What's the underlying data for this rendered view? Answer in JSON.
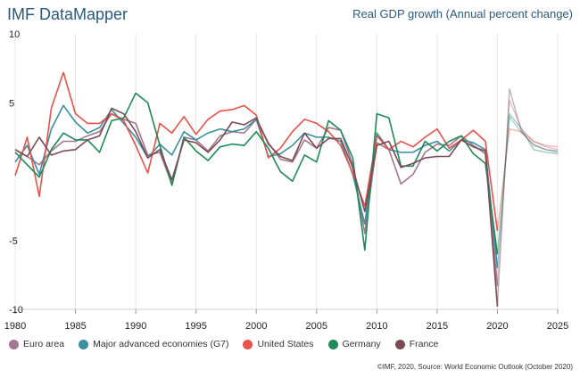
{
  "header": {
    "brand": "IMF DataMapper",
    "title": "Real GDP growth (Annual percent change)"
  },
  "footer": {
    "source": "©IMF, 2020, Source: World Economic Outlook (October 2020)"
  },
  "chart_data": {
    "type": "line",
    "title": "Real GDP growth (Annual percent change)",
    "xlabel": "",
    "ylabel": "",
    "xlim": [
      1980,
      2025
    ],
    "ylim": [
      -10,
      10
    ],
    "x_ticks": [
      "1980",
      "1985",
      "1990",
      "1995",
      "2000",
      "2005",
      "2010",
      "2015",
      "2020",
      "2025"
    ],
    "y_ticks": [
      "10",
      "5",
      "-5",
      "-10"
    ],
    "grid": "vertical",
    "legend_position": "bottom-left",
    "forecast_start": 2020,
    "x": [
      1980,
      1981,
      1982,
      1983,
      1984,
      1985,
      1986,
      1987,
      1988,
      1989,
      1990,
      1991,
      1992,
      1993,
      1994,
      1995,
      1996,
      1997,
      1998,
      1999,
      2000,
      2001,
      2002,
      2003,
      2004,
      2005,
      2006,
      2007,
      2008,
      2009,
      2010,
      2011,
      2012,
      2013,
      2014,
      2015,
      2016,
      2017,
      2018,
      2019,
      2020,
      2021,
      2022,
      2023,
      2024,
      2025
    ],
    "series": [
      {
        "name": "Euro area",
        "color": "#a2778f",
        "values": [
          1.6,
          1.1,
          0.5,
          1.5,
          2.2,
          2.2,
          2.6,
          2.9,
          4.2,
          3.8,
          3.5,
          1.2,
          1.4,
          -0.9,
          2.5,
          2.3,
          1.5,
          2.6,
          2.9,
          2.8,
          3.8,
          2.1,
          0.9,
          0.7,
          2.3,
          1.7,
          3.2,
          3.0,
          0.5,
          -4.5,
          2.1,
          1.6,
          -0.9,
          -0.2,
          1.4,
          2.0,
          1.9,
          2.6,
          1.9,
          1.3,
          -8.3,
          5.2,
          3.1,
          2.2,
          1.8,
          1.6
        ]
      },
      {
        "name": "Major advanced economies (G7)",
        "color": "#3a8fa0",
        "values": [
          0.7,
          1.9,
          -0.2,
          3.1,
          4.8,
          3.6,
          2.8,
          3.2,
          4.5,
          3.5,
          2.5,
          1.0,
          2.0,
          1.2,
          2.9,
          2.3,
          2.8,
          3.1,
          2.9,
          3.1,
          3.8,
          1.1,
          1.3,
          1.9,
          2.8,
          2.5,
          2.5,
          2.2,
          -0.2,
          -3.8,
          2.8,
          1.6,
          1.4,
          1.4,
          1.9,
          2.2,
          1.5,
          2.3,
          2.1,
          1.6,
          -7.0,
          4.0,
          2.8,
          2.0,
          1.6,
          1.4
        ]
      },
      {
        "name": "United States",
        "color": "#e8524a",
        "values": [
          -0.3,
          2.5,
          -1.8,
          4.6,
          7.2,
          4.2,
          3.5,
          3.5,
          4.2,
          3.7,
          1.9,
          -0.1,
          3.5,
          2.8,
          4.0,
          2.7,
          3.8,
          4.4,
          4.5,
          4.8,
          4.1,
          1.0,
          1.7,
          2.9,
          3.8,
          3.5,
          2.9,
          1.9,
          -0.1,
          -2.5,
          2.6,
          1.6,
          2.2,
          1.8,
          2.5,
          3.1,
          1.7,
          2.3,
          3.0,
          2.2,
          -4.3,
          3.1,
          2.9,
          2.2,
          1.9,
          1.8
        ]
      },
      {
        "name": "Germany",
        "color": "#1f8a55",
        "values": [
          1.4,
          0.5,
          -0.4,
          1.6,
          2.8,
          2.3,
          2.3,
          1.4,
          3.7,
          3.9,
          5.7,
          5.0,
          1.9,
          -1.0,
          2.5,
          1.5,
          0.8,
          1.8,
          2.0,
          1.9,
          2.9,
          1.7,
          0.0,
          -0.7,
          1.2,
          0.7,
          3.7,
          3.0,
          1.0,
          -5.7,
          4.2,
          3.9,
          0.4,
          0.4,
          2.2,
          1.5,
          2.2,
          2.6,
          1.3,
          0.6,
          -6.0,
          4.2,
          3.1,
          1.6,
          1.4,
          1.3
        ]
      },
      {
        "name": "France",
        "color": "#7b4b55",
        "values": [
          1.6,
          1.1,
          2.5,
          1.2,
          1.5,
          1.6,
          2.3,
          2.6,
          4.6,
          4.2,
          2.9,
          1.0,
          1.6,
          -0.6,
          2.3,
          2.1,
          1.4,
          2.3,
          3.6,
          3.4,
          3.9,
          2.0,
          1.1,
          0.8,
          2.8,
          1.7,
          2.4,
          2.4,
          0.3,
          -2.9,
          1.9,
          2.2,
          0.3,
          0.6,
          1.0,
          1.1,
          1.1,
          2.3,
          1.8,
          1.5,
          -9.8,
          6.0,
          2.9,
          1.9,
          1.6,
          1.5
        ]
      }
    ]
  }
}
